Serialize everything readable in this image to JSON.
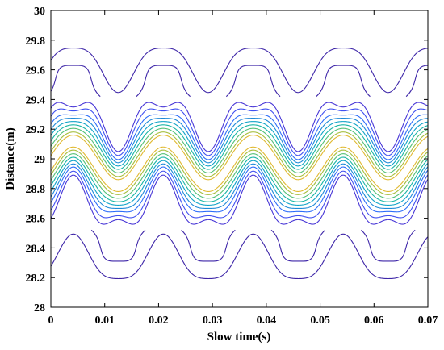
{
  "chart_data": {
    "type": "contour",
    "title": "",
    "xlabel": "Slow time(s)",
    "ylabel": "Distance(m)",
    "xlim": [
      0,
      0.07
    ],
    "ylim": [
      28,
      30
    ],
    "x_ticks": [
      "0",
      "0.01",
      "0.02",
      "0.03",
      "0.04",
      "0.05",
      "0.06",
      "0.07"
    ],
    "y_ticks": [
      "28",
      "28.2",
      "28.4",
      "28.6",
      "28.8",
      "29",
      "29.2",
      "29.4",
      "29.6",
      "29.8",
      "30"
    ],
    "grid": false,
    "legend": "none",
    "signal": {
      "center_distance": 28.97,
      "oscillation_amplitude": 0.15,
      "oscillation_period": 0.0167,
      "phase_at_t0": 0.0
    },
    "contour_levels": [
      {
        "level": 1,
        "half_width": 0.66,
        "color": "#3e26a8"
      },
      {
        "level": 2,
        "half_width": 0.3,
        "color": "#4735d6"
      },
      {
        "level": 3,
        "half_width": 0.26,
        "color": "#4050f0"
      },
      {
        "level": 4,
        "half_width": 0.22,
        "color": "#2c6dfa"
      },
      {
        "level": 5,
        "half_width": 0.19,
        "color": "#1e8ad8"
      },
      {
        "level": 6,
        "half_width": 0.16,
        "color": "#0fa3c8"
      },
      {
        "level": 7,
        "half_width": 0.13,
        "color": "#19b5a5"
      },
      {
        "level": 8,
        "half_width": 0.1,
        "color": "#54c077"
      },
      {
        "level": 9,
        "half_width": 0.07,
        "color": "#a5be3c"
      },
      {
        "level": 10,
        "half_width": 0.045,
        "color": "#e1b931"
      }
    ]
  }
}
